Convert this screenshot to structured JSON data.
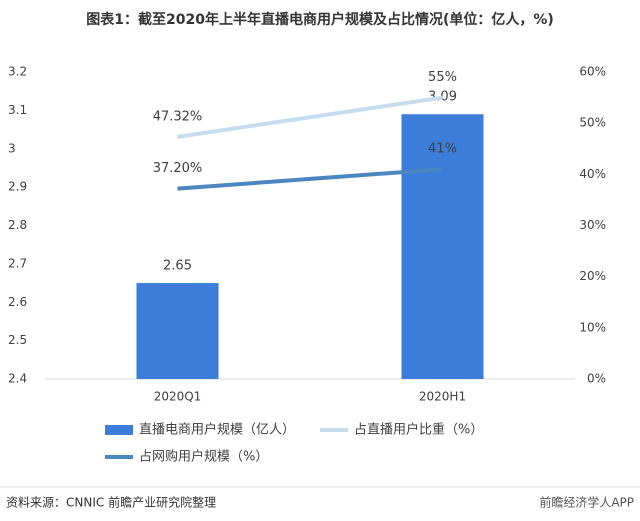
{
  "chart_data": {
    "type": "bar",
    "title": "图表1：截至2020年上半年直播电商用户规模及占比情况(单位：亿人，%)",
    "categories": [
      "2020Q1",
      "2020H1"
    ],
    "series": [
      {
        "name": "直播电商用户规模（亿人）",
        "type": "bar",
        "color": "#3b7dd8",
        "values": [
          2.65,
          3.09
        ]
      },
      {
        "name": "占直播用户比重（%）",
        "type": "line",
        "axis": "y2",
        "color": "#c5dcef",
        "values": [
          47.32,
          55
        ],
        "value_labels": [
          "47.32%",
          "55%"
        ]
      },
      {
        "name": "占网购用户规模（%）",
        "type": "line",
        "axis": "y2",
        "color": "#4a86c0",
        "values": [
          37.2,
          41
        ],
        "value_labels": [
          "37.20%",
          "41%"
        ]
      }
    ],
    "ylim": [
      2.4,
      3.2
    ],
    "yticks": [
      2.4,
      2.5,
      2.6,
      2.7,
      2.8,
      2.9,
      3,
      3.1,
      3.2
    ],
    "y2lim": [
      0,
      60
    ],
    "y2ticks": [
      {
        "value": 0,
        "label": "0%"
      },
      {
        "value": 10,
        "label": "10%"
      },
      {
        "value": 20,
        "label": "20%"
      },
      {
        "value": 30,
        "label": "30%"
      },
      {
        "value": 40,
        "label": "40%"
      },
      {
        "value": 50,
        "label": "50%"
      },
      {
        "value": 60,
        "label": "60%"
      }
    ],
    "grid": false,
    "source": "资料来源：CNNIC 前瞻产业研究院整理",
    "watermark": "前瞻经济学人APP"
  }
}
